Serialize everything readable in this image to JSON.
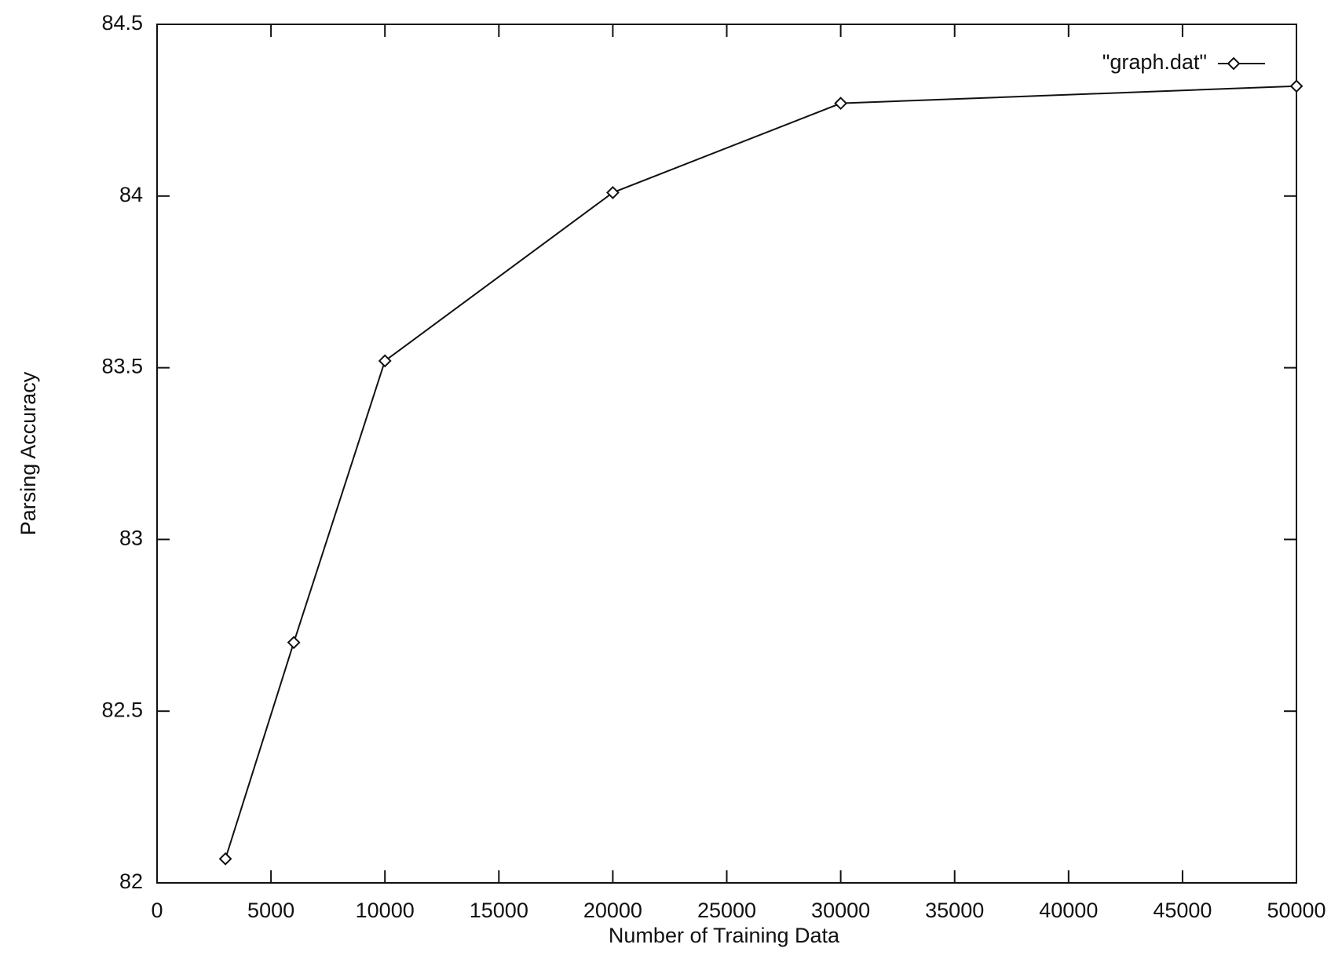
{
  "chart_data": {
    "type": "line",
    "x_label": "Number of Training Data",
    "y_label": "Parsing Accuracy",
    "x": [
      3000,
      6000,
      10000,
      20000,
      30000,
      50000
    ],
    "series": [
      {
        "name": "\"graph.dat\"",
        "color": "#111111",
        "values": [
          82.07,
          82.7,
          83.52,
          84.01,
          84.27,
          84.32
        ]
      }
    ],
    "xlim": [
      0,
      50000
    ],
    "xticks": [
      0,
      5000,
      10000,
      15000,
      20000,
      25000,
      30000,
      35000,
      40000,
      45000,
      50000
    ],
    "ylim": [
      82,
      84.5
    ],
    "yticks": [
      82,
      82.5,
      83,
      83.5,
      84,
      84.5
    ],
    "grid": false,
    "legend": "top-right"
  }
}
